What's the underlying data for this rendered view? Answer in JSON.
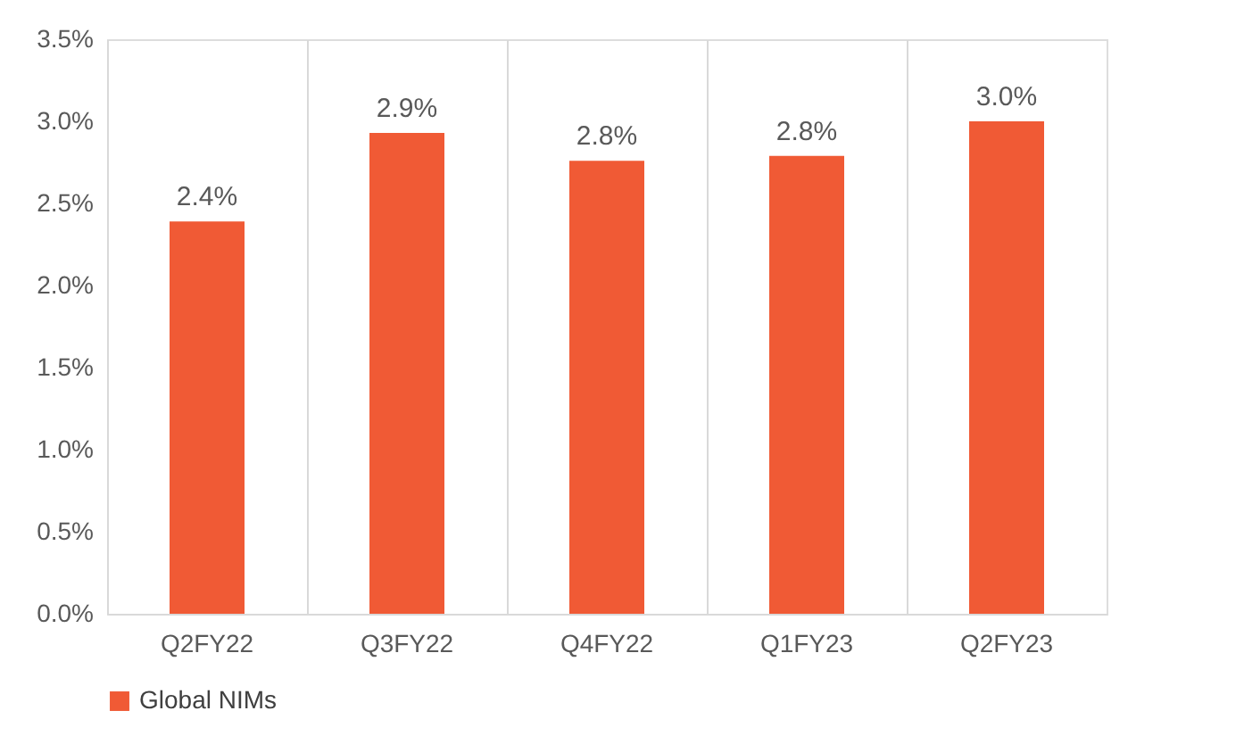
{
  "chart_data": {
    "type": "bar",
    "categories": [
      "Q2FY22",
      "Q3FY22",
      "Q4FY22",
      "Q1FY23",
      "Q2FY23"
    ],
    "series": [
      {
        "name": "Global NIMs",
        "color": "#f05a35",
        "values": [
          2.39,
          2.93,
          2.76,
          2.79,
          3.0
        ],
        "value_labels": [
          "2.4%",
          "2.9%",
          "2.8%",
          "2.8%",
          "3.0%"
        ]
      }
    ],
    "ylim": [
      0,
      3.5
    ],
    "yticks": [
      {
        "value": 0,
        "label": "0.0%"
      },
      {
        "value": 0.5,
        "label": "0.5%"
      },
      {
        "value": 1,
        "label": "1.0%"
      },
      {
        "value": 1.5,
        "label": "1.5%"
      },
      {
        "value": 2,
        "label": "2.0%"
      },
      {
        "value": 2.5,
        "label": "2.5%"
      },
      {
        "value": 3,
        "label": "3.0%"
      },
      {
        "value": 3.5,
        "label": "3.5%"
      }
    ],
    "grid": "x",
    "legend": "bottom"
  }
}
